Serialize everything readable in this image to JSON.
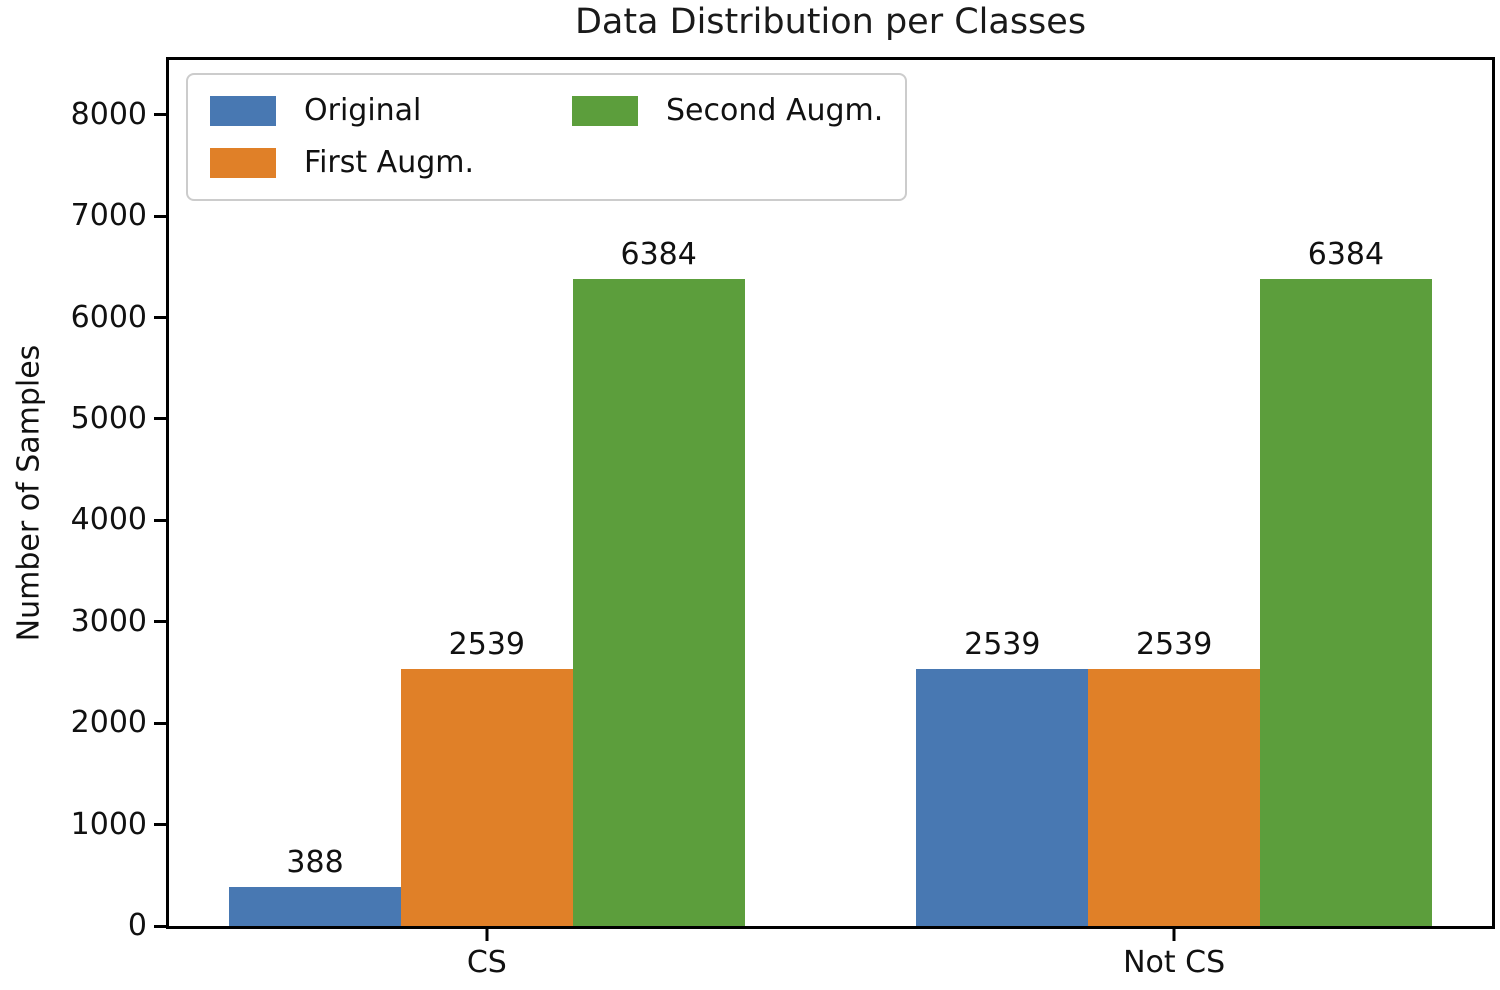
{
  "title": "Data Distribution per Classes",
  "chart_data": {
    "type": "bar",
    "title": "Data Distribution per Classes",
    "xlabel": "",
    "ylabel": "Number of Samples",
    "categories": [
      "CS",
      "Not CS"
    ],
    "series": [
      {
        "name": "Original",
        "color": "#4878B2",
        "values": [
          388,
          2539
        ]
      },
      {
        "name": "First Augm.",
        "color": "#E08028",
        "values": [
          2539,
          2539
        ]
      },
      {
        "name": "Second Augm.",
        "color": "#5C9E3C",
        "values": [
          6384,
          6384
        ]
      }
    ],
    "bar_value_labels": [
      [
        "388",
        "2539",
        "6384"
      ],
      [
        "2539",
        "2539",
        "6384"
      ]
    ],
    "yticks": [
      0,
      1000,
      2000,
      3000,
      4000,
      5000,
      6000,
      7000,
      8000
    ],
    "ylim": [
      0,
      8540
    ],
    "xlim": [
      -0.4625,
      1.4625
    ],
    "bar_width": 0.25,
    "grid": false,
    "legend_position": "upper-left",
    "legend_columns": 2,
    "legend_entries": [
      "Original",
      "First Augm.",
      "Second Augm."
    ]
  },
  "colors": {
    "axis": "#000000",
    "background": "#ffffff",
    "legend_border": "#cccccc",
    "text": "#111111"
  }
}
